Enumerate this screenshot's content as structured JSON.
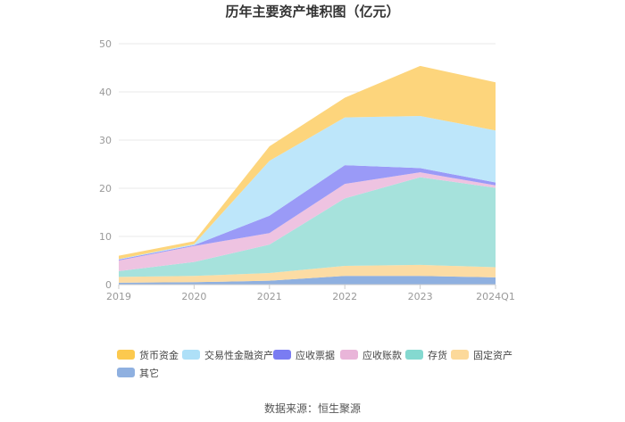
{
  "chart_data": {
    "type": "area",
    "stacked": true,
    "title": "历年主要资产堆积图（亿元）",
    "categories": [
      "2019",
      "2020",
      "2021",
      "2022",
      "2023",
      "2024Q1"
    ],
    "ylim": [
      0,
      50
    ],
    "yticks": [
      0,
      10,
      20,
      30,
      40,
      50
    ],
    "grid": true,
    "legend_position": "bottom",
    "series": [
      {
        "name": "其它",
        "color": "#8fb0e0",
        "values": [
          0.4,
          0.5,
          0.8,
          1.8,
          1.8,
          1.5
        ]
      },
      {
        "name": "固定资产",
        "color": "#fcdca4",
        "values": [
          1.2,
          1.3,
          1.6,
          2.1,
          2.3,
          2.1
        ]
      },
      {
        "name": "存货",
        "color": "#a6e2dc",
        "values": [
          1.2,
          2.9,
          5.9,
          14.0,
          18.2,
          16.5
        ]
      },
      {
        "name": "应收账款",
        "color": "#eec3e1",
        "values": [
          2.2,
          3.3,
          2.4,
          3.0,
          1.0,
          0.5
        ]
      },
      {
        "name": "应收票据",
        "color": "#9a9af7",
        "values": [
          0.2,
          0.2,
          3.6,
          3.9,
          0.9,
          0.6
        ]
      },
      {
        "name": "交易性金融资产",
        "color": "#bde6fa",
        "values": [
          0.1,
          0.2,
          11.4,
          9.9,
          10.8,
          10.8
        ]
      },
      {
        "name": "货币资金",
        "color": "#fdd57c",
        "values": [
          0.7,
          0.6,
          3.0,
          4.1,
          10.4,
          10.0
        ]
      }
    ],
    "legend_order": [
      "货币资金",
      "交易性金融资产",
      "应收票据",
      "应收账款",
      "存货",
      "固定资产",
      "其它"
    ],
    "legend_colors": {
      "货币资金": "#fcc94e",
      "交易性金融资产": "#aee0f8",
      "应收票据": "#7a7cf2",
      "应收账款": "#e9b5d9",
      "存货": "#84d9d0",
      "固定资产": "#fcd99a",
      "其它": "#8fb0e0"
    }
  },
  "source": "数据来源：恒生聚源",
  "colors": {
    "grid": "#e9e9e9",
    "axis": "#cccccc",
    "tick_text": "#999999"
  }
}
